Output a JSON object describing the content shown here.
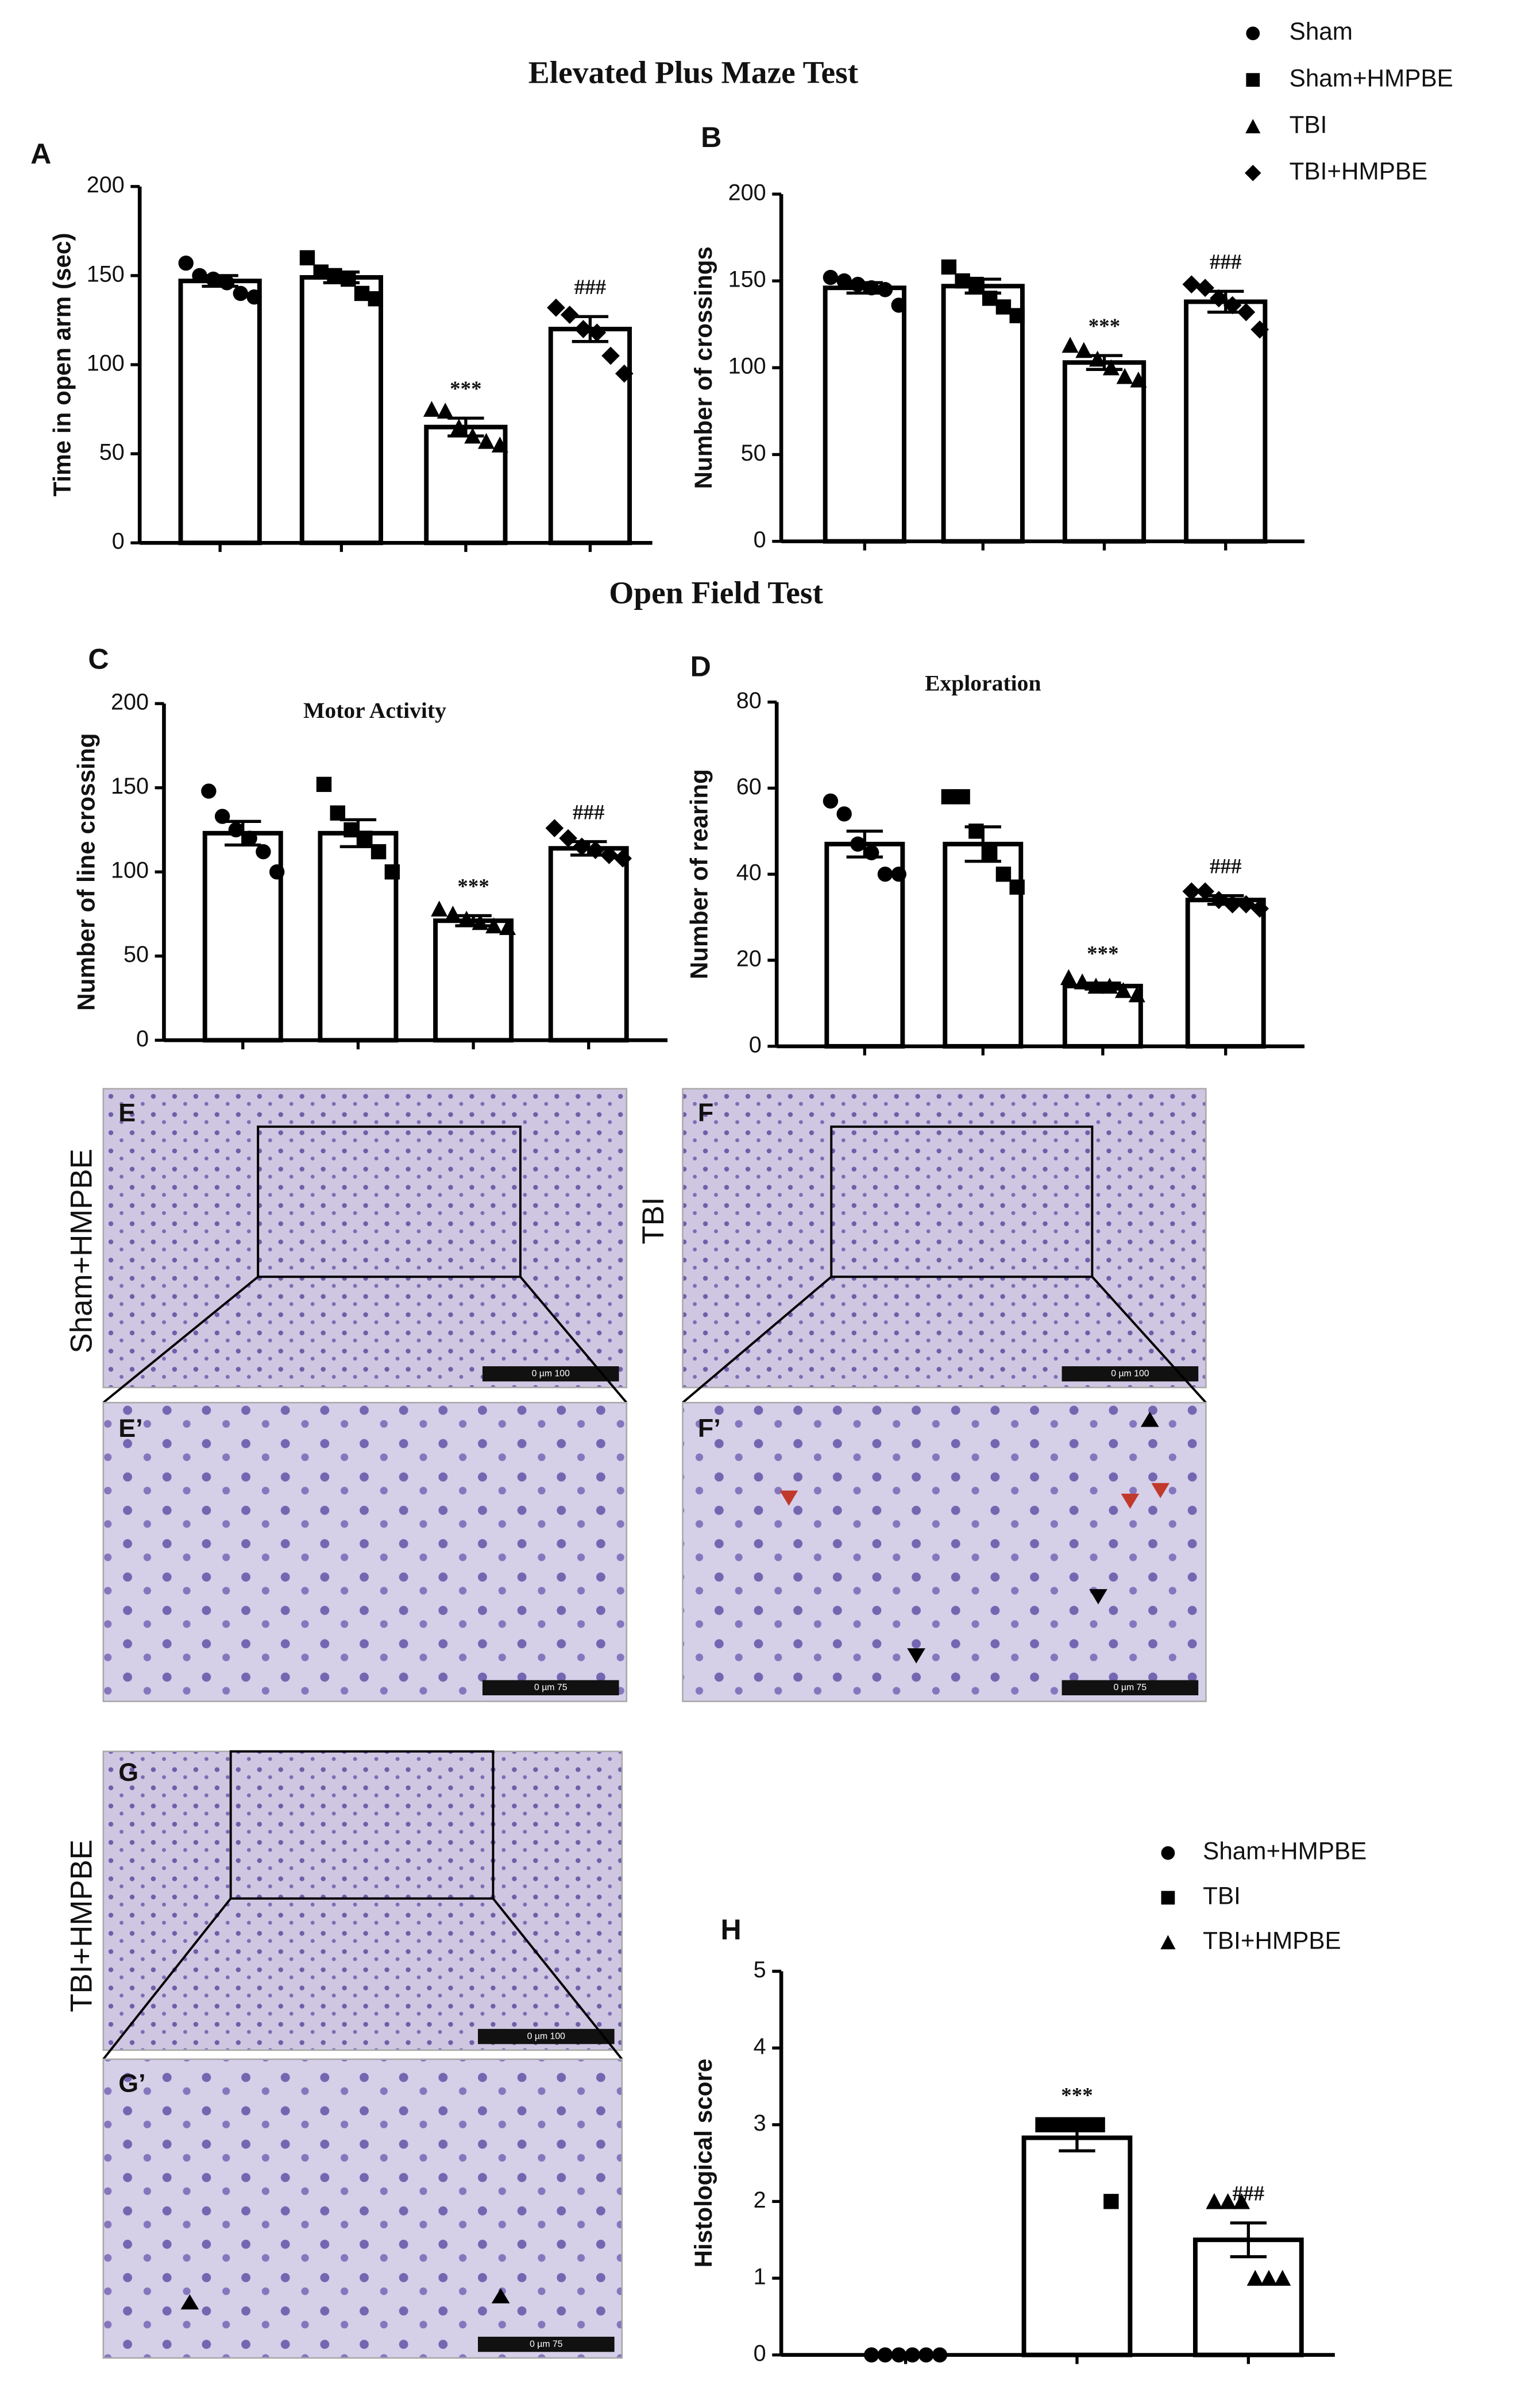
{
  "headings": [
    "Elevated Plus Maze Test",
    "Open Field Test"
  ],
  "legend": {
    "items": [
      "Sham",
      "Sham+HMPBE",
      "TBI",
      "TBI+HMPBE"
    ],
    "markers": [
      "circle",
      "square",
      "triangle",
      "diamond"
    ]
  },
  "chart_data": [
    {
      "type": "bar",
      "panel": "A",
      "ylabel": "Time in open arm (sec)",
      "categories": [
        null,
        null,
        null,
        null
      ],
      "values": [
        147,
        149,
        65,
        120
      ],
      "errors": [
        3,
        3,
        5,
        7
      ],
      "points": [
        [
          157,
          150,
          148,
          146,
          140,
          138
        ],
        [
          160,
          152,
          150,
          148,
          140,
          137
        ],
        [
          75,
          74,
          65,
          60,
          57,
          55
        ],
        [
          132,
          128,
          120,
          118,
          105,
          95
        ]
      ],
      "markers": [
        "circle",
        "square",
        "triangle",
        "diamond"
      ],
      "annotations": [
        null,
        null,
        "***",
        "###"
      ],
      "ylim": [
        0,
        200
      ],
      "yticks": [
        0,
        50,
        100,
        150,
        200
      ]
    },
    {
      "type": "bar",
      "panel": "B",
      "ylabel": "Number of crossings",
      "categories": [
        null,
        null,
        null,
        null
      ],
      "values": [
        146,
        147,
        103,
        138
      ],
      "errors": [
        3,
        4,
        4,
        6
      ],
      "points": [
        [
          152,
          150,
          148,
          146,
          145,
          136
        ],
        [
          158,
          150,
          148,
          140,
          135,
          130
        ],
        [
          113,
          110,
          105,
          100,
          95,
          93
        ],
        [
          148,
          146,
          140,
          136,
          132,
          122
        ]
      ],
      "markers": [
        "circle",
        "square",
        "triangle",
        "diamond"
      ],
      "annotations": [
        null,
        null,
        "***",
        "###"
      ],
      "ylim": [
        0,
        200
      ],
      "yticks": [
        0,
        50,
        100,
        150,
        200
      ]
    },
    {
      "type": "bar",
      "panel": "C",
      "title": "Motor Activity",
      "ylabel": "Number of line crossing",
      "categories": [
        null,
        null,
        null,
        null
      ],
      "values": [
        123,
        123,
        71,
        114
      ],
      "errors": [
        7,
        8,
        3,
        4
      ],
      "points": [
        [
          148,
          133,
          125,
          120,
          112,
          100
        ],
        [
          152,
          135,
          125,
          120,
          112,
          100
        ],
        [
          78,
          75,
          72,
          70,
          68,
          67
        ],
        [
          126,
          120,
          115,
          113,
          110,
          108
        ]
      ],
      "markers": [
        "circle",
        "square",
        "triangle",
        "diamond"
      ],
      "annotations": [
        null,
        null,
        "***",
        "###"
      ],
      "ylim": [
        0,
        200
      ],
      "yticks": [
        0,
        50,
        100,
        150,
        200
      ]
    },
    {
      "type": "bar",
      "panel": "D",
      "title": "Exploration",
      "ylabel": "Number of rearing",
      "categories": [
        null,
        null,
        null,
        null
      ],
      "values": [
        47,
        47,
        14,
        34
      ],
      "errors": [
        3,
        4,
        0.7,
        1
      ],
      "points": [
        [
          57,
          54,
          47,
          45,
          40,
          40
        ],
        [
          58,
          58,
          50,
          45,
          40,
          37
        ],
        [
          16,
          15,
          14,
          14,
          13,
          12
        ],
        [
          36,
          36,
          34,
          33,
          33,
          32
        ]
      ],
      "markers": [
        "circle",
        "square",
        "triangle",
        "diamond"
      ],
      "annotations": [
        null,
        null,
        "***",
        "###"
      ],
      "ylim": [
        0,
        80
      ],
      "yticks": [
        0,
        20,
        40,
        60,
        80
      ]
    },
    {
      "type": "bar",
      "panel": "H",
      "ylabel": "Histological score",
      "categories": [
        null,
        null,
        null
      ],
      "legend": [
        "Sham+HMPBE",
        "TBI",
        "TBI+HMPBE"
      ],
      "values": [
        0,
        2.83,
        1.5
      ],
      "errors": [
        0,
        0.17,
        0.22
      ],
      "points": [
        [
          0,
          0,
          0,
          0,
          0,
          0
        ],
        [
          3,
          3,
          3,
          3,
          3,
          2
        ],
        [
          2,
          2,
          2,
          1,
          1,
          1
        ]
      ],
      "markers": [
        "circle",
        "square",
        "triangle"
      ],
      "annotations": [
        null,
        "***",
        "###"
      ],
      "ylim": [
        0,
        5
      ],
      "yticks": [
        0,
        1,
        2,
        3,
        4,
        5
      ]
    }
  ],
  "micrographs": [
    {
      "label": "E",
      "row_label": "Sham+HMPBE",
      "scale": "0   µm   100"
    },
    {
      "label": "E’",
      "scale": "0   µm   75"
    },
    {
      "label": "F",
      "row_label": "TBI",
      "scale": "0   µm   100"
    },
    {
      "label": "F’",
      "scale": "0   µm   75"
    },
    {
      "label": "G",
      "row_label": "TBI+HMPBE",
      "scale": "0   µm   100"
    },
    {
      "label": "G’",
      "scale": "0   µm   75"
    }
  ]
}
